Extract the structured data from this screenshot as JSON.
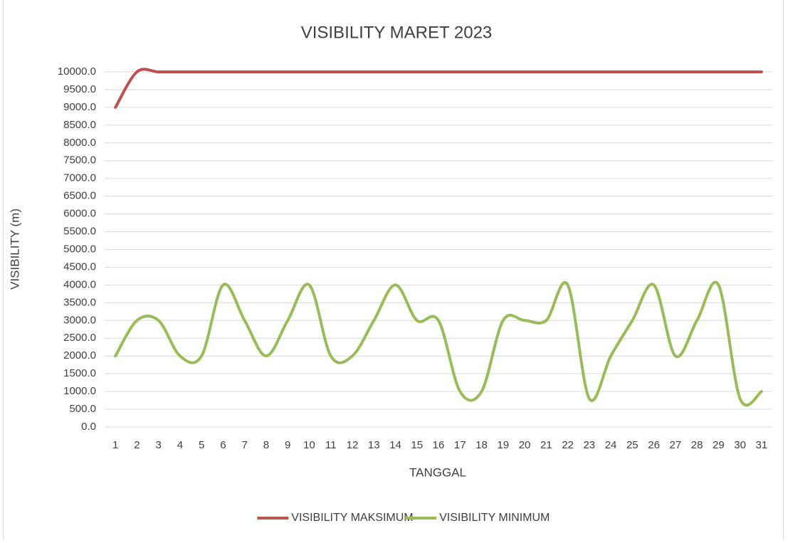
{
  "chart_data": {
    "type": "line",
    "title": "VISIBILITY MARET 2023",
    "xlabel": "TANGGAL",
    "ylabel": "VISIBILITY (m)",
    "categories": [
      "1",
      "2",
      "3",
      "4",
      "5",
      "6",
      "7",
      "8",
      "9",
      "10",
      "11",
      "12",
      "13",
      "14",
      "15",
      "16",
      "17",
      "18",
      "19",
      "20",
      "21",
      "22",
      "23",
      "24",
      "25",
      "26",
      "27",
      "28",
      "29",
      "30",
      "31"
    ],
    "series": [
      {
        "name": "VISIBILITY MAKSIMUM",
        "color": "#c0504d",
        "values": [
          9000,
          10000,
          10000,
          10000,
          10000,
          10000,
          10000,
          10000,
          10000,
          10000,
          10000,
          10000,
          10000,
          10000,
          10000,
          10000,
          10000,
          10000,
          10000,
          10000,
          10000,
          10000,
          10000,
          10000,
          10000,
          10000,
          10000,
          10000,
          10000,
          10000,
          10000
        ]
      },
      {
        "name": "VISIBILITY MINIMUM",
        "color": "#9bbb59",
        "values": [
          2000,
          3000,
          3000,
          2000,
          2000,
          4000,
          3000,
          2000,
          3000,
          4000,
          2000,
          2000,
          3000,
          4000,
          3000,
          3000,
          1000,
          1000,
          3000,
          3000,
          3000,
          4000,
          800,
          2000,
          3000,
          4000,
          2000,
          3000,
          4000,
          800,
          1000
        ]
      }
    ],
    "ylim": [
      0,
      10000
    ],
    "yticks": [
      {
        "value": 0,
        "label": "0.0"
      },
      {
        "value": 500,
        "label": "500.0"
      },
      {
        "value": 1000,
        "label": "1000.0"
      },
      {
        "value": 1500,
        "label": "1500.0"
      },
      {
        "value": 2000,
        "label": "2000.0"
      },
      {
        "value": 2500,
        "label": "2500.0"
      },
      {
        "value": 3000,
        "label": "3000.0"
      },
      {
        "value": 3500,
        "label": "3500.0"
      },
      {
        "value": 4000,
        "label": "4000.0"
      },
      {
        "value": 4500,
        "label": "4500.0"
      },
      {
        "value": 5000,
        "label": "5000.0"
      },
      {
        "value": 5500,
        "label": "5500.0"
      },
      {
        "value": 6000,
        "label": "6000.0"
      },
      {
        "value": 6500,
        "label": "6500.0"
      },
      {
        "value": 7000,
        "label": "7000.0"
      },
      {
        "value": 7500,
        "label": "7500.0"
      },
      {
        "value": 8000,
        "label": "8000.0"
      },
      {
        "value": 8500,
        "label": "8500.0"
      },
      {
        "value": 9000,
        "label": "9000.0"
      },
      {
        "value": 9500,
        "label": "9500.0"
      },
      {
        "value": 10000,
        "label": "10000.0"
      }
    ],
    "grid": true,
    "smooth": true,
    "legend": "bottom"
  }
}
